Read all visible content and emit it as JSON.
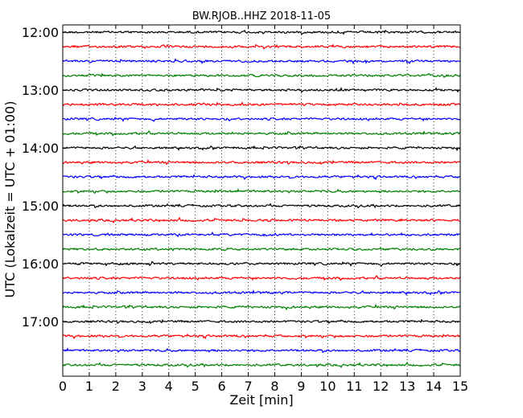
{
  "chart_data": {
    "type": "line",
    "title": "BW.RJOB..HHZ 2018-11-05",
    "xlabel": "Zeit  [min]",
    "ylabel": "UTC (Lokalzeit = UTC + 01:00)",
    "xlim": [
      0,
      15
    ],
    "xticks": [
      0,
      1,
      2,
      3,
      4,
      5,
      6,
      7,
      8,
      9,
      10,
      11,
      12,
      13,
      14,
      15
    ],
    "grid": "vertical dotted",
    "ytick_labels": [
      "12:00",
      "13:00",
      "14:00",
      "15:00",
      "16:00",
      "17:00"
    ],
    "trace_interval_minutes": 15,
    "trace_start": "12:00",
    "trace_count": 24,
    "trace_colors": [
      "#000000",
      "#ff0000",
      "#0000ff",
      "#008000"
    ]
  }
}
